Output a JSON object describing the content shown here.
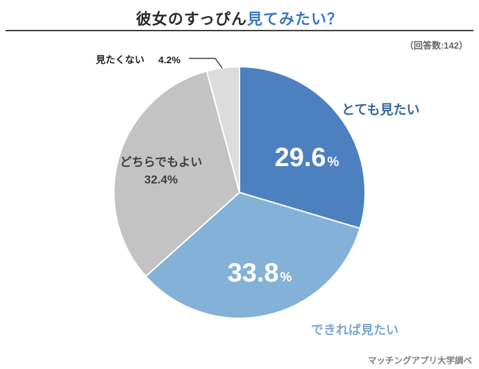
{
  "header": {
    "title_black": "彼女のすっぴん",
    "title_blue": "見てみたい？",
    "respondents": "（回答数:142）"
  },
  "chart_data": {
    "type": "pie",
    "title": "彼女のすっぴん見てみたい？",
    "categories": [
      "とても見たい",
      "できれば見たい",
      "どちらでもよい",
      "見たくない"
    ],
    "values": [
      29.6,
      33.8,
      32.4,
      4.2
    ],
    "colors": [
      "#4d80bf",
      "#84b1d8",
      "#c3c3c3",
      "#dcdcdc"
    ],
    "unit": "%",
    "start_angle": "top",
    "direction": "clockwise",
    "respondents": 142,
    "source": "マッチングアプリ大学調べ"
  },
  "labels": {
    "totemo": {
      "name": "とても見たい",
      "value": "29.6",
      "unit": "%"
    },
    "dekireba": {
      "name": "できれば見たい",
      "value": "33.8",
      "unit": "%"
    },
    "dochira": {
      "name": "どちらでもよい",
      "value": "32.4%"
    },
    "mitakunai": {
      "name": "見たくない",
      "value": "4.2%"
    }
  },
  "footer": {
    "source": "マッチングアプリ大学調べ"
  }
}
